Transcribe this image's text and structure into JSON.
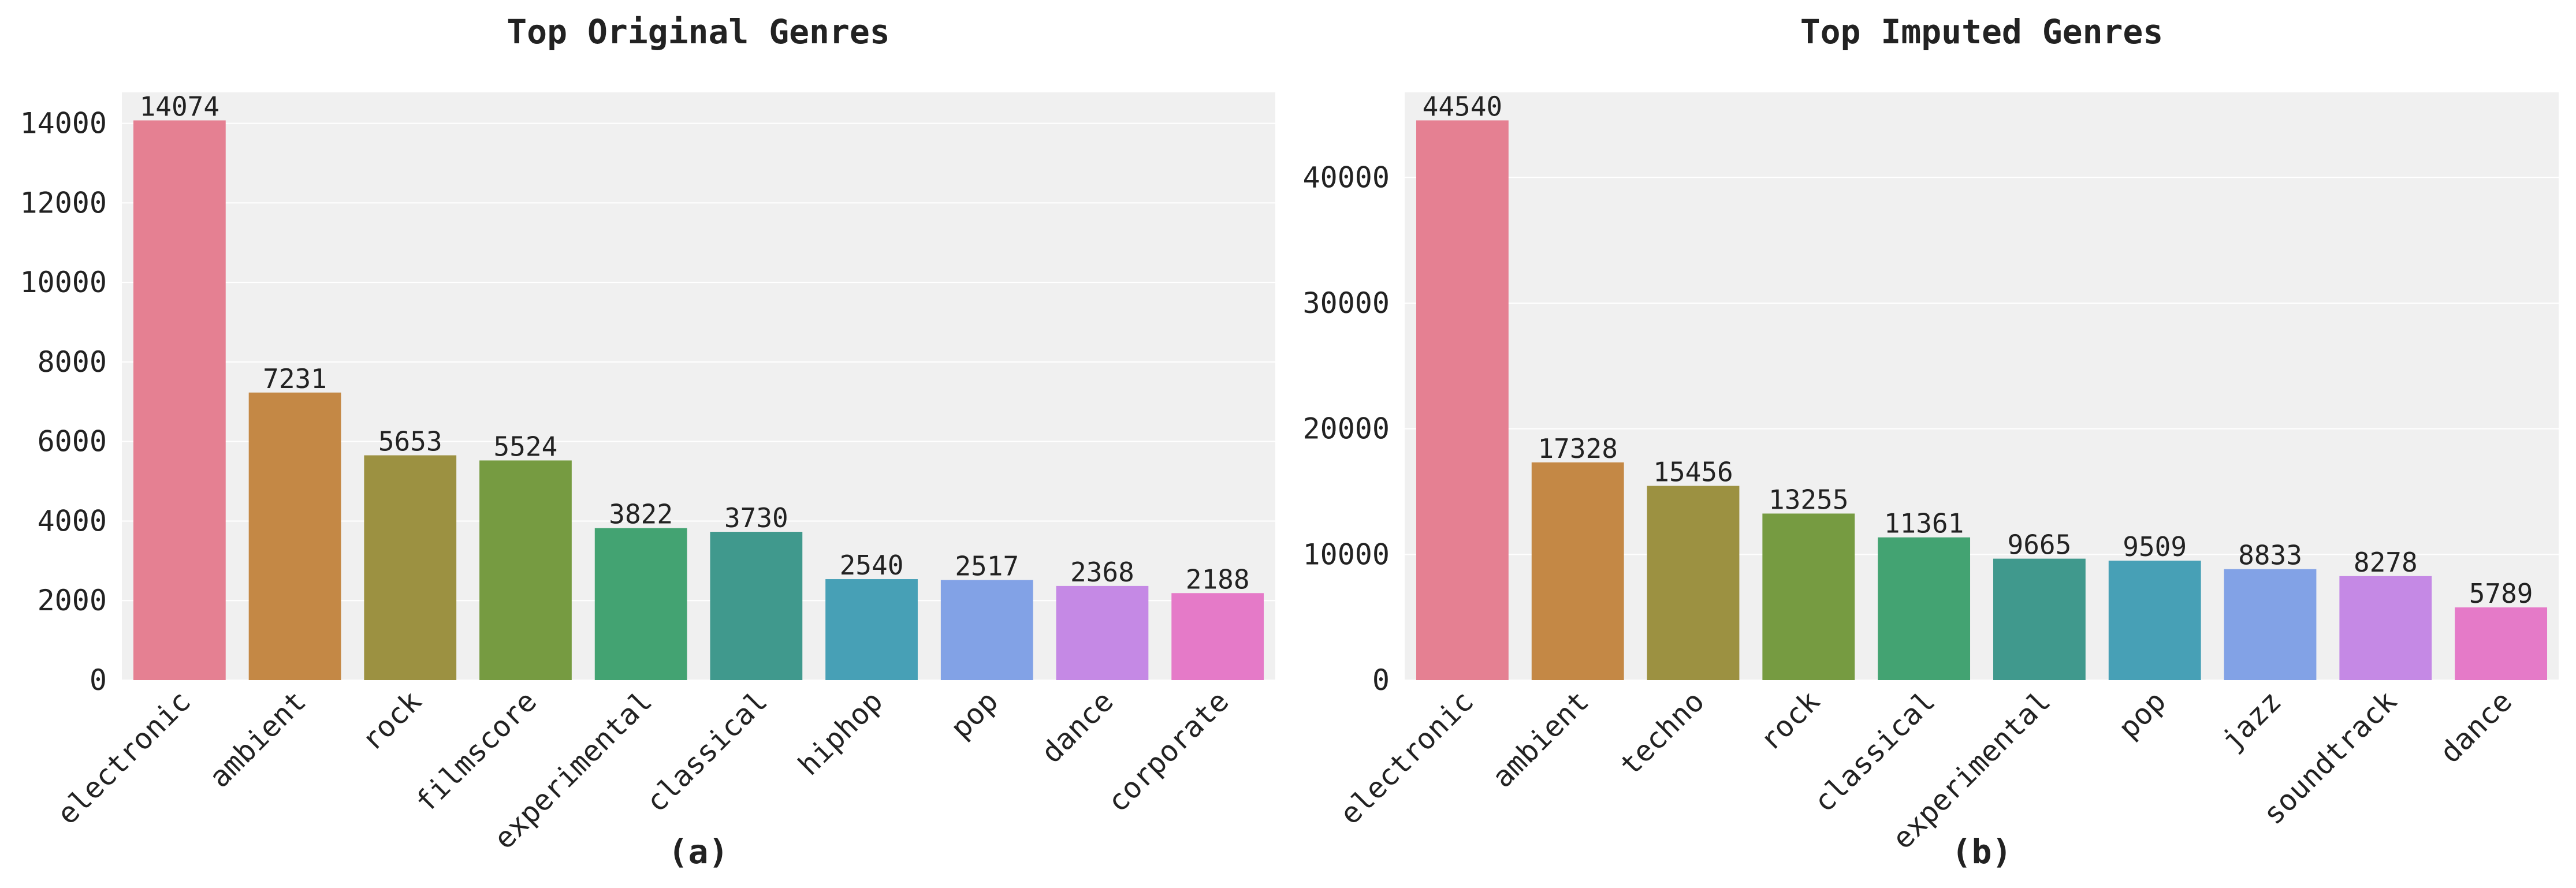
{
  "chart_data": [
    {
      "type": "bar",
      "title": "Top Original Genres",
      "sublabel": "(a)",
      "categories": [
        "electronic",
        "ambient",
        "rock",
        "filmscore",
        "experimental",
        "classical",
        "hiphop",
        "pop",
        "dance",
        "corporate"
      ],
      "values": [
        14074,
        7231,
        5653,
        5524,
        3822,
        3730,
        2540,
        2517,
        2368,
        2188
      ],
      "yticks": [
        0,
        2000,
        4000,
        6000,
        8000,
        10000,
        12000,
        14000
      ],
      "ylim": [
        0,
        14778
      ],
      "grid": true,
      "colors": [
        "#e58092",
        "#c48845",
        "#9c9141",
        "#769b41",
        "#43a372",
        "#40998d",
        "#47a0b6",
        "#82a2e6",
        "#c589e5",
        "#e57ac8"
      ]
    },
    {
      "type": "bar",
      "title": "Top Imputed Genres",
      "sublabel": "(b)",
      "categories": [
        "electronic",
        "ambient",
        "techno",
        "rock",
        "classical",
        "experimental",
        "pop",
        "jazz",
        "soundtrack",
        "dance"
      ],
      "values": [
        44540,
        17328,
        15456,
        13255,
        11361,
        9665,
        9509,
        8833,
        8278,
        5789
      ],
      "yticks": [
        0,
        10000,
        20000,
        30000,
        40000
      ],
      "ylim": [
        0,
        46767
      ],
      "grid": true,
      "colors": [
        "#e58092",
        "#c48845",
        "#9c9141",
        "#769b41",
        "#43a372",
        "#40998d",
        "#47a0b6",
        "#82a2e6",
        "#c589e5",
        "#e57ac8"
      ]
    }
  ]
}
